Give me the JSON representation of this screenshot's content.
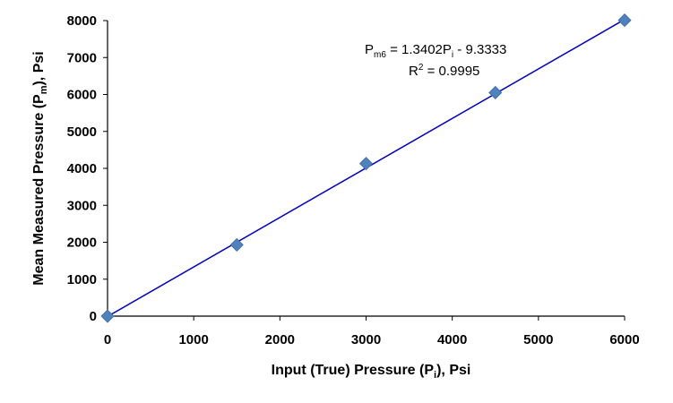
{
  "chart_data": {
    "type": "scatter",
    "x": [
      0,
      1500,
      3000,
      4500,
      6000
    ],
    "y": [
      0,
      1930,
      4130,
      6050,
      8010
    ],
    "xlim": [
      0,
      6000
    ],
    "ylim": [
      0,
      8000
    ],
    "xticks": [
      0,
      1000,
      2000,
      3000,
      4000,
      5000,
      6000
    ],
    "yticks": [
      0,
      1000,
      2000,
      3000,
      4000,
      5000,
      6000,
      7000,
      8000
    ],
    "grid": false,
    "marker_color": "#4f81bd",
    "trendline": {
      "slope": 1.3402,
      "intercept": -9.3333,
      "color": "#0000cc",
      "equation": {
        "lhs": "P",
        "lhs_sub": "m6",
        "mid": " = 1.3402P",
        "mid_sub": "i",
        "rhs": " - 9.3333"
      },
      "r2": {
        "lhs": "R",
        "sup": "2",
        "rhs": " = 0.9995"
      }
    },
    "xlabel": {
      "pre": "Input (True) Pressure (P",
      "sub": "i",
      "post": "), Psi"
    },
    "ylabel": {
      "pre": "Mean Measured Pressure (P",
      "sub": "m",
      "post": "), Psi"
    }
  }
}
